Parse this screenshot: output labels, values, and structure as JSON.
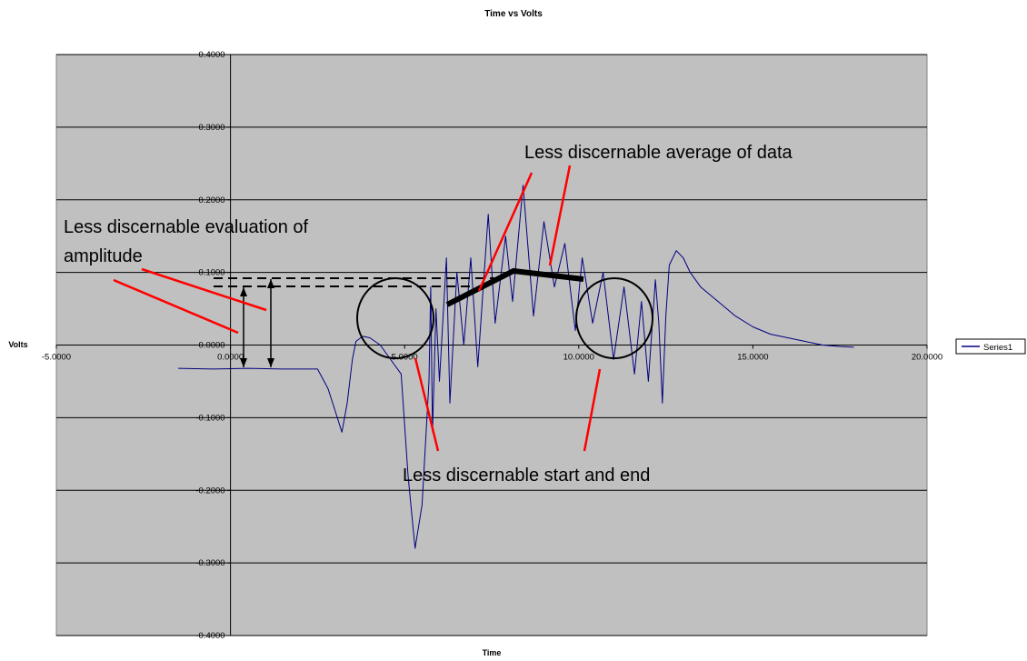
{
  "chart_data": {
    "type": "line",
    "title": "Time vs Volts",
    "xlabel": "Time",
    "ylabel": "Volts",
    "xlim": [
      -5,
      20
    ],
    "ylim": [
      -0.4,
      0.4
    ],
    "x_ticks": [
      -5,
      0,
      5,
      10,
      15,
      20
    ],
    "x_tick_labels": [
      "-5.0000",
      "0.0000",
      "5.0000",
      "10.0000",
      "15.0000",
      "20.0000"
    ],
    "y_ticks": [
      -0.4,
      -0.3,
      -0.2,
      -0.1,
      0.0,
      0.1,
      0.2,
      0.3,
      0.4
    ],
    "y_tick_labels": [
      "-0.4000",
      "-0.3000",
      "-0.2000",
      "-0.1000",
      "0.0000",
      "0.1000",
      "0.2000",
      "0.3000",
      "0.4000"
    ],
    "grid": "horizontal",
    "legend_position": "right",
    "plot_background": "#c0c0c0",
    "series_color": "#000080",
    "annotation_color": "#ff0000",
    "series": [
      {
        "name": "Series1",
        "x": [
          -1.5,
          -0.5,
          0.5,
          1.5,
          2.5,
          2.8,
          3.0,
          3.2,
          3.35,
          3.5,
          3.6,
          3.8,
          4.0,
          4.3,
          4.6,
          4.9,
          5.1,
          5.3,
          5.5,
          5.7,
          5.75,
          5.8,
          5.9,
          6.0,
          6.2,
          6.3,
          6.5,
          6.7,
          6.9,
          7.1,
          7.4,
          7.6,
          7.9,
          8.1,
          8.4,
          8.7,
          9.0,
          9.3,
          9.6,
          9.9,
          10.1,
          10.4,
          10.7,
          11.0,
          11.3,
          11.6,
          11.8,
          12.0,
          12.2,
          12.3,
          12.4,
          12.5,
          12.6,
          12.8,
          13.0,
          13.2,
          13.5,
          14.0,
          14.5,
          15.0,
          15.5,
          16.0,
          16.5,
          17.0,
          17.5,
          17.9
        ],
        "y": [
          -0.032,
          -0.033,
          -0.032,
          -0.033,
          -0.033,
          -0.06,
          -0.09,
          -0.12,
          -0.08,
          -0.02,
          0.005,
          0.012,
          0.01,
          0.0,
          -0.02,
          -0.04,
          -0.18,
          -0.28,
          -0.22,
          -0.05,
          0.08,
          -0.12,
          0.05,
          -0.05,
          0.12,
          -0.08,
          0.1,
          0.0,
          0.12,
          -0.03,
          0.18,
          0.03,
          0.15,
          0.06,
          0.22,
          0.04,
          0.17,
          0.08,
          0.14,
          0.02,
          0.12,
          0.03,
          0.1,
          -0.02,
          0.08,
          -0.04,
          0.06,
          -0.05,
          0.09,
          0.03,
          -0.08,
          0.04,
          0.11,
          0.13,
          0.12,
          0.1,
          0.08,
          0.06,
          0.04,
          0.025,
          0.015,
          0.01,
          0.005,
          0.0,
          -0.002,
          -0.003
        ]
      }
    ],
    "annotations": [
      "Less discernable evaluation of amplitude",
      "Less discernable average of data",
      "Less discernable start and end"
    ]
  }
}
